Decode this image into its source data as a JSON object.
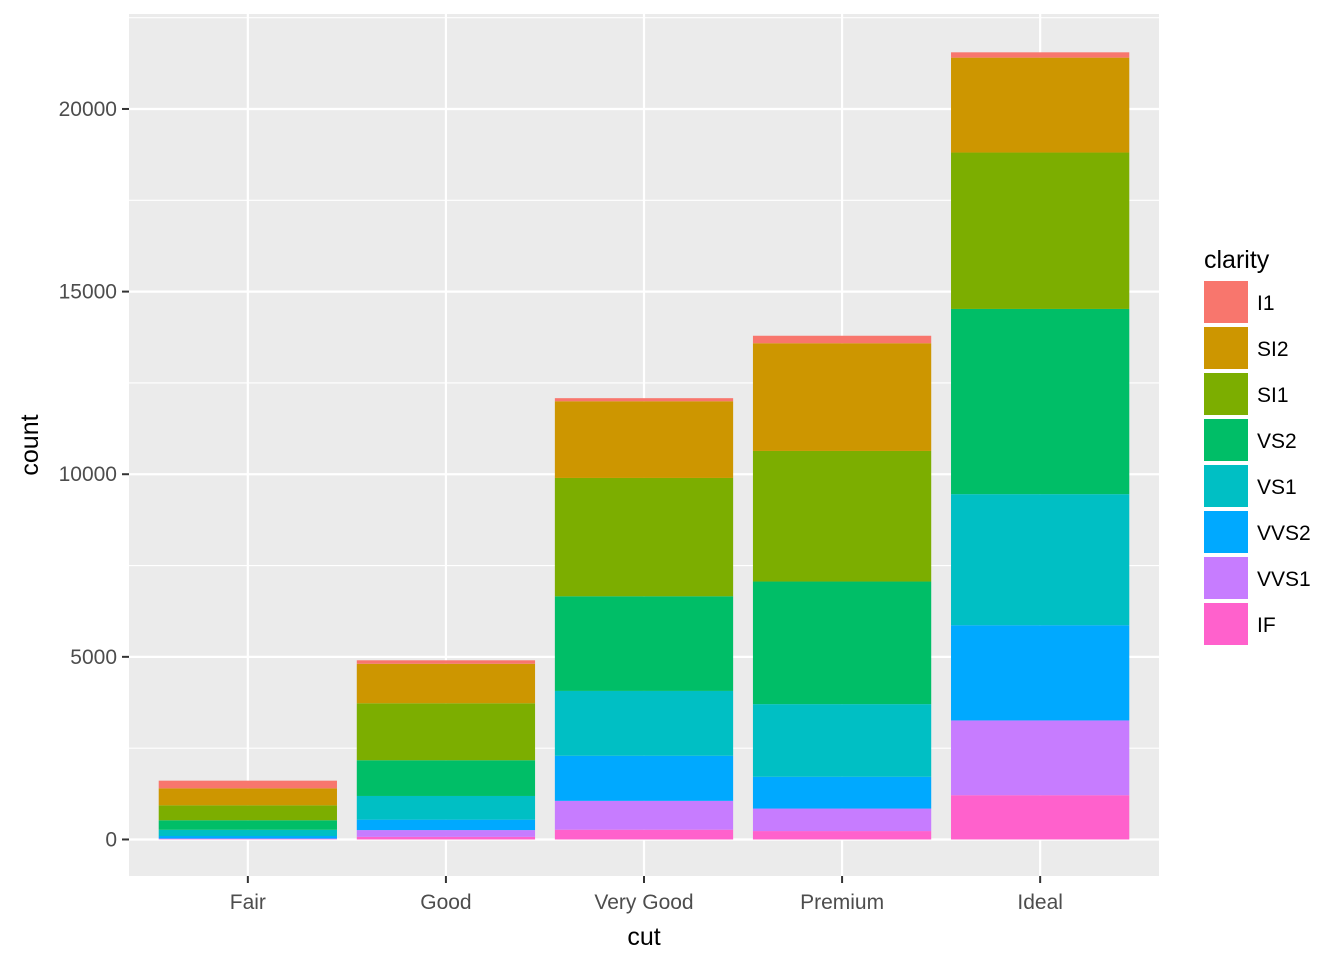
{
  "chart_data": {
    "type": "bar",
    "stacked": true,
    "xlabel": "cut",
    "ylabel": "count",
    "categories": [
      "Fair",
      "Good",
      "Very Good",
      "Premium",
      "Ideal"
    ],
    "y_ticks": [
      0,
      5000,
      10000,
      15000,
      20000
    ],
    "y_tick_labels": [
      "0",
      "5000",
      "10000",
      "15000",
      "20000"
    ],
    "ylim": [
      -1000,
      22600
    ],
    "grid": true,
    "legend": {
      "title": "clarity",
      "placement": "right"
    },
    "series": [
      {
        "name": "IF",
        "color": "#FF61CC",
        "values": [
          9,
          71,
          268,
          230,
          1212
        ]
      },
      {
        "name": "VVS1",
        "color": "#C77CFF",
        "values": [
          17,
          186,
          789,
          616,
          2047
        ]
      },
      {
        "name": "VVS2",
        "color": "#00A9FF",
        "values": [
          69,
          286,
          1235,
          870,
          2606
        ]
      },
      {
        "name": "VS1",
        "color": "#00BFC4",
        "values": [
          170,
          648,
          1775,
          1989,
          3589
        ]
      },
      {
        "name": "VS2",
        "color": "#00BE67",
        "values": [
          261,
          978,
          2591,
          3357,
          5071
        ]
      },
      {
        "name": "SI1",
        "color": "#7CAE00",
        "values": [
          408,
          1560,
          3240,
          3575,
          4282
        ]
      },
      {
        "name": "SI2",
        "color": "#CD9600",
        "values": [
          466,
          1081,
          2100,
          2949,
          2598
        ]
      },
      {
        "name": "I1",
        "color": "#F8766D",
        "values": [
          210,
          96,
          84,
          205,
          146
        ]
      }
    ],
    "legend_order": [
      "I1",
      "SI2",
      "SI1",
      "VS2",
      "VS1",
      "VVS2",
      "VVS1",
      "IF"
    ],
    "panel_background": "#EBEBEB",
    "grid_color": "#FFFFFF",
    "axis_text_color": "#4D4D4D"
  }
}
